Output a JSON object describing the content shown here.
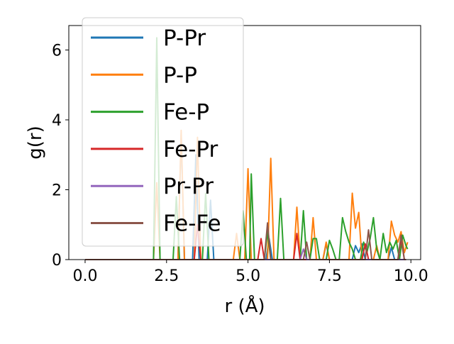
{
  "chart_data": {
    "type": "line",
    "xlabel": "r (Å)",
    "ylabel": "g(r)",
    "xlim": [
      -0.5,
      10.3
    ],
    "ylim": [
      0,
      6.7
    ],
    "xticks": [
      0.0,
      2.5,
      5.0,
      7.5,
      10.0
    ],
    "xtick_labels": [
      "0.0",
      "2.5",
      "5.0",
      "7.5",
      "10.0"
    ],
    "yticks": [
      0,
      2,
      4,
      6
    ],
    "ytick_labels": [
      "0",
      "2",
      "4",
      "6"
    ],
    "grid": false,
    "legend_position": "upper-left",
    "series": [
      {
        "name": "P-Pr",
        "color": "#1f77b4",
        "points": [
          [
            0.0,
            0
          ],
          [
            2.0,
            0
          ],
          [
            2.85,
            0
          ],
          [
            2.95,
            3.6
          ],
          [
            3.05,
            0
          ],
          [
            3.3,
            0
          ],
          [
            3.4,
            3.0
          ],
          [
            3.5,
            0
          ],
          [
            3.75,
            0
          ],
          [
            3.85,
            1.7
          ],
          [
            3.95,
            0
          ],
          [
            5.55,
            0
          ],
          [
            5.65,
            0.6
          ],
          [
            5.75,
            0
          ],
          [
            7.3,
            0
          ],
          [
            7.4,
            0.45
          ],
          [
            7.5,
            0
          ],
          [
            8.2,
            0
          ],
          [
            8.3,
            0.4
          ],
          [
            8.4,
            0.2
          ],
          [
            8.5,
            0.45
          ],
          [
            8.6,
            0
          ],
          [
            9.3,
            0
          ],
          [
            9.4,
            0.35
          ],
          [
            9.5,
            0
          ],
          [
            9.85,
            0
          ]
        ]
      },
      {
        "name": "P-P",
        "color": "#ff7f0e",
        "points": [
          [
            0.0,
            0
          ],
          [
            2.1,
            0
          ],
          [
            2.2,
            2.2
          ],
          [
            2.3,
            0
          ],
          [
            2.85,
            0
          ],
          [
            2.95,
            3.7
          ],
          [
            3.05,
            0
          ],
          [
            3.35,
            0
          ],
          [
            3.45,
            3.5
          ],
          [
            3.55,
            0
          ],
          [
            4.55,
            0
          ],
          [
            4.65,
            0.75
          ],
          [
            4.75,
            0
          ],
          [
            4.9,
            0
          ],
          [
            5.0,
            2.6
          ],
          [
            5.1,
            0
          ],
          [
            5.6,
            0
          ],
          [
            5.7,
            2.9
          ],
          [
            5.8,
            0
          ],
          [
            6.4,
            0
          ],
          [
            6.5,
            1.5
          ],
          [
            6.6,
            0
          ],
          [
            6.9,
            0
          ],
          [
            7.0,
            1.2
          ],
          [
            7.1,
            0
          ],
          [
            7.3,
            0
          ],
          [
            7.4,
            0.5
          ],
          [
            7.5,
            0
          ],
          [
            8.1,
            0
          ],
          [
            8.2,
            1.9
          ],
          [
            8.3,
            0.9
          ],
          [
            8.4,
            1.35
          ],
          [
            8.5,
            0
          ],
          [
            8.85,
            0
          ],
          [
            8.95,
            0.4
          ],
          [
            9.05,
            0
          ],
          [
            9.3,
            0
          ],
          [
            9.4,
            1.1
          ],
          [
            9.5,
            0.7
          ],
          [
            9.6,
            0.5
          ],
          [
            9.7,
            0.8
          ],
          [
            9.8,
            0.2
          ],
          [
            9.9,
            0.5
          ]
        ]
      },
      {
        "name": "Fe-P",
        "color": "#2ca02c",
        "points": [
          [
            0.0,
            0
          ],
          [
            2.1,
            0
          ],
          [
            2.2,
            6.35
          ],
          [
            2.3,
            0
          ],
          [
            2.7,
            0
          ],
          [
            2.8,
            1.8
          ],
          [
            2.9,
            0
          ],
          [
            3.6,
            0
          ],
          [
            3.7,
            1.9
          ],
          [
            3.8,
            0
          ],
          [
            4.75,
            0
          ],
          [
            4.85,
            1.4
          ],
          [
            4.95,
            0
          ],
          [
            5.05,
            0
          ],
          [
            5.1,
            2.45
          ],
          [
            5.2,
            0
          ],
          [
            5.5,
            0
          ],
          [
            5.6,
            0.8
          ],
          [
            5.7,
            0
          ],
          [
            5.9,
            0
          ],
          [
            6.0,
            1.75
          ],
          [
            6.1,
            0
          ],
          [
            6.6,
            0
          ],
          [
            6.7,
            1.4
          ],
          [
            6.8,
            0
          ],
          [
            6.9,
            0
          ],
          [
            7.0,
            0.6
          ],
          [
            7.1,
            0.6
          ],
          [
            7.2,
            0
          ],
          [
            7.4,
            0
          ],
          [
            7.5,
            0.55
          ],
          [
            7.6,
            0.3
          ],
          [
            7.7,
            0
          ],
          [
            7.8,
            0
          ],
          [
            7.9,
            1.2
          ],
          [
            8.0,
            0.8
          ],
          [
            8.1,
            0.5
          ],
          [
            8.2,
            0.3
          ],
          [
            8.3,
            0
          ],
          [
            8.45,
            0
          ],
          [
            8.55,
            0.5
          ],
          [
            8.65,
            0.2
          ],
          [
            8.75,
            0.6
          ],
          [
            8.85,
            1.2
          ],
          [
            8.95,
            0.3
          ],
          [
            9.05,
            0
          ],
          [
            9.15,
            0.75
          ],
          [
            9.25,
            0.2
          ],
          [
            9.35,
            0.5
          ],
          [
            9.45,
            0.3
          ],
          [
            9.55,
            0.55
          ],
          [
            9.65,
            0
          ],
          [
            9.75,
            0.7
          ],
          [
            9.85,
            0.4
          ],
          [
            9.9,
            0.3
          ]
        ]
      },
      {
        "name": "Fe-Pr",
        "color": "#d62728",
        "points": [
          [
            0.0,
            0
          ],
          [
            3.35,
            0
          ],
          [
            3.45,
            1.0
          ],
          [
            3.55,
            0
          ],
          [
            5.3,
            0
          ],
          [
            5.4,
            0.6
          ],
          [
            5.5,
            0
          ],
          [
            6.4,
            0
          ],
          [
            6.5,
            0.75
          ],
          [
            6.6,
            0
          ],
          [
            8.5,
            0
          ],
          [
            8.6,
            0.45
          ],
          [
            8.7,
            0
          ],
          [
            9.6,
            0
          ],
          [
            9.7,
            0.6
          ],
          [
            9.8,
            0
          ],
          [
            9.85,
            0
          ]
        ]
      },
      {
        "name": "Pr-Pr",
        "color": "#9467bd",
        "points": [
          [
            0.0,
            0
          ],
          [
            6.6,
            0
          ],
          [
            6.7,
            0.3
          ],
          [
            6.8,
            0
          ],
          [
            9.85,
            0
          ]
        ]
      },
      {
        "name": "Fe-Fe",
        "color": "#8c564b",
        "points": [
          [
            0.0,
            0
          ],
          [
            5.5,
            0
          ],
          [
            5.6,
            1.05
          ],
          [
            5.7,
            0
          ],
          [
            6.7,
            0
          ],
          [
            6.8,
            0.5
          ],
          [
            6.9,
            0
          ],
          [
            8.6,
            0
          ],
          [
            8.7,
            0.85
          ],
          [
            8.8,
            0
          ],
          [
            9.6,
            0
          ],
          [
            9.7,
            0.7
          ],
          [
            9.8,
            0
          ],
          [
            9.85,
            0
          ]
        ]
      }
    ]
  }
}
